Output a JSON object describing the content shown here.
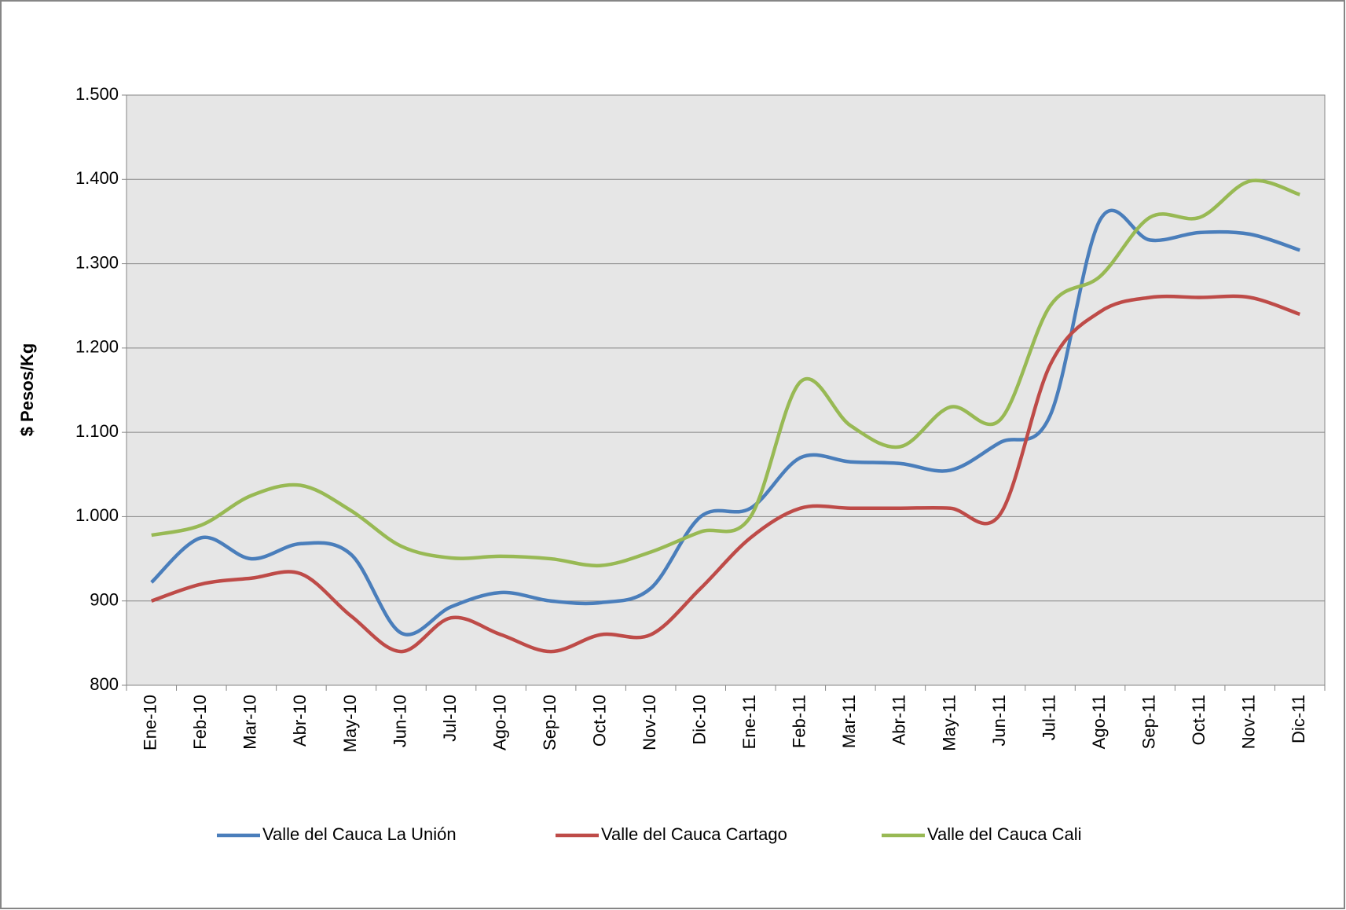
{
  "chart_data": {
    "type": "line",
    "y_label": "$ Pesos/Kg",
    "categories": [
      "Ene-10",
      "Feb-10",
      "Mar-10",
      "Abr-10",
      "May-10",
      "Jun-10",
      "Jul-10",
      "Ago-10",
      "Sep-10",
      "Oct-10",
      "Nov-10",
      "Dic-10",
      "Ene-11",
      "Feb-11",
      "Mar-11",
      "Abr-11",
      "May-11",
      "Jun-11",
      "Jul-11",
      "Ago-11",
      "Sep-11",
      "Oct-11",
      "Nov-11",
      "Dic-11"
    ],
    "series": [
      {
        "name": "Valle del Cauca La Unión",
        "color": "#4a7ebb",
        "values": [
          922,
          975,
          950,
          968,
          955,
          862,
          893,
          910,
          900,
          898,
          915,
          1000,
          1010,
          1070,
          1065,
          1063,
          1055,
          1088,
          1120,
          1352,
          1328,
          1337,
          1335,
          1316
        ]
      },
      {
        "name": "Valle del Cauca Cartago",
        "color": "#be4b48",
        "values": [
          900,
          920,
          927,
          932,
          882,
          840,
          880,
          860,
          840,
          860,
          860,
          915,
          975,
          1010,
          1010,
          1010,
          1010,
          1003,
          1180,
          1243,
          1260,
          1260,
          1260,
          1240
        ]
      },
      {
        "name": "Valle del Cauca Cali",
        "color": "#98b954",
        "values": [
          978,
          990,
          1025,
          1037,
          1007,
          965,
          951,
          953,
          950,
          942,
          958,
          982,
          1000,
          1160,
          1108,
          1083,
          1130,
          1115,
          1250,
          1285,
          1355,
          1355,
          1398,
          1382
        ]
      }
    ],
    "ylim": [
      800,
      1500
    ],
    "yticks": [
      800,
      900,
      {
        "value": 1000,
        "label": "1.000"
      },
      {
        "value": 1100,
        "label": "1.100"
      },
      {
        "value": 1200,
        "label": "1.200"
      },
      {
        "value": 1300,
        "label": "1.300"
      },
      {
        "value": 1400,
        "label": "1.400"
      },
      {
        "value": 1500,
        "label": "1.500"
      }
    ],
    "grid": true,
    "smooth": true,
    "legend": "bottom"
  }
}
